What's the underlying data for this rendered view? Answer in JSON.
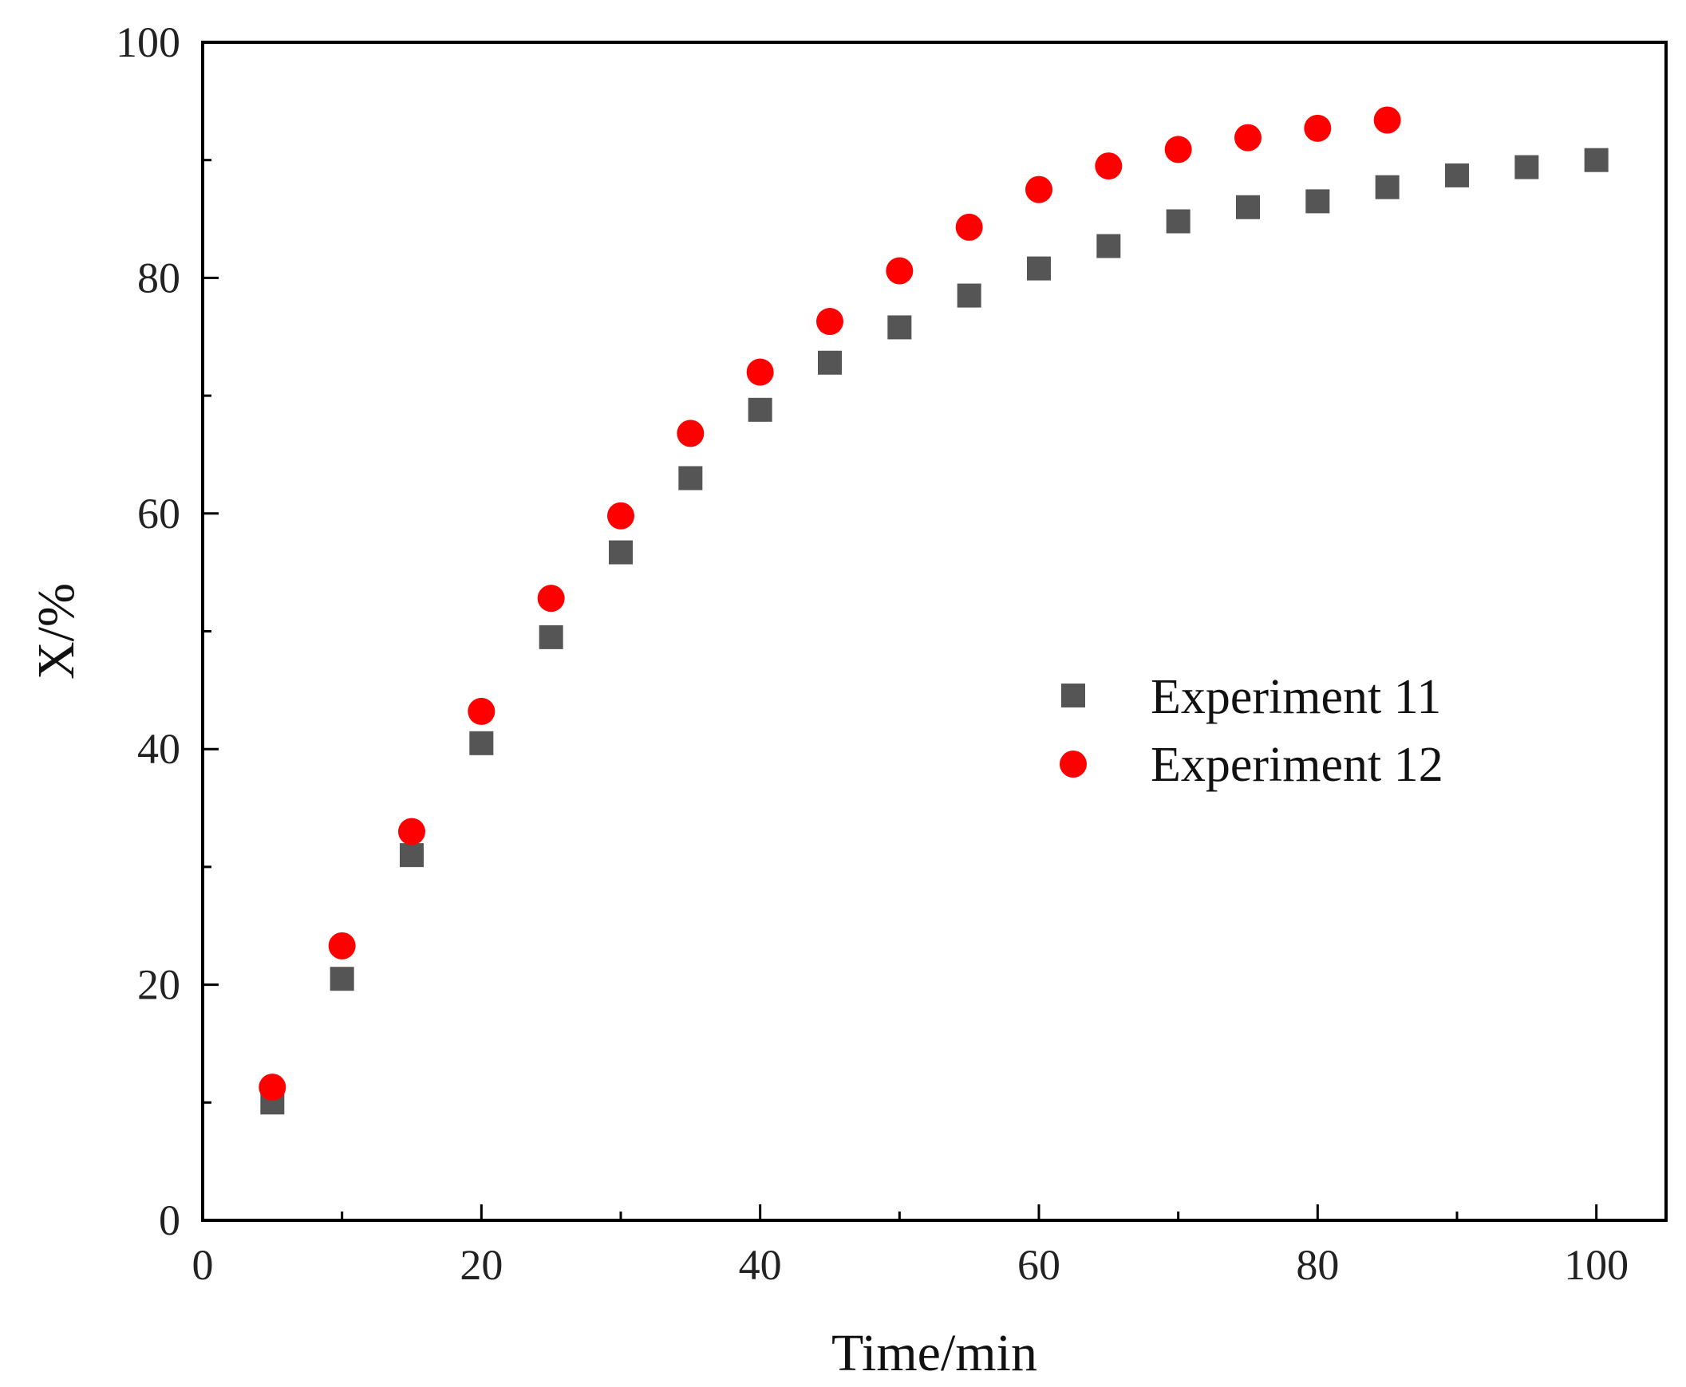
{
  "chart_data": {
    "type": "scatter",
    "title": "",
    "xlabel": "Time/min",
    "ylabel": "X/%",
    "xlim": [
      0,
      105
    ],
    "ylim": [
      0,
      100
    ],
    "x_ticks": [
      0,
      20,
      40,
      60,
      80,
      100
    ],
    "y_ticks": [
      0,
      20,
      40,
      60,
      80,
      100
    ],
    "x_minor_ticks": [
      10,
      30,
      50,
      70,
      90
    ],
    "y_minor_ticks": [
      10,
      30,
      50,
      70,
      90
    ],
    "grid": false,
    "legend_position": "right-middle",
    "series": [
      {
        "name": "Experiment 11",
        "marker": "square",
        "color": "#555555",
        "x": [
          5,
          10,
          15,
          20,
          25,
          30,
          35,
          40,
          45,
          50,
          55,
          60,
          65,
          70,
          75,
          80,
          85,
          90,
          95,
          100
        ],
        "y": [
          10.0,
          20.5,
          31.0,
          40.5,
          49.5,
          56.7,
          63.0,
          68.8,
          72.8,
          75.8,
          78.5,
          80.8,
          82.7,
          84.8,
          86.0,
          86.5,
          87.7,
          88.7,
          89.4,
          90.0
        ]
      },
      {
        "name": "Experiment 12",
        "marker": "circle",
        "color": "#ff0000",
        "x": [
          5,
          10,
          15,
          20,
          25,
          30,
          35,
          40,
          45,
          50,
          55,
          60,
          65,
          70,
          75,
          80,
          85
        ],
        "y": [
          11.3,
          23.3,
          33.0,
          43.2,
          52.8,
          59.8,
          66.8,
          72.0,
          76.3,
          80.6,
          84.3,
          87.5,
          89.5,
          90.9,
          91.9,
          92.7,
          93.4
        ]
      }
    ]
  }
}
